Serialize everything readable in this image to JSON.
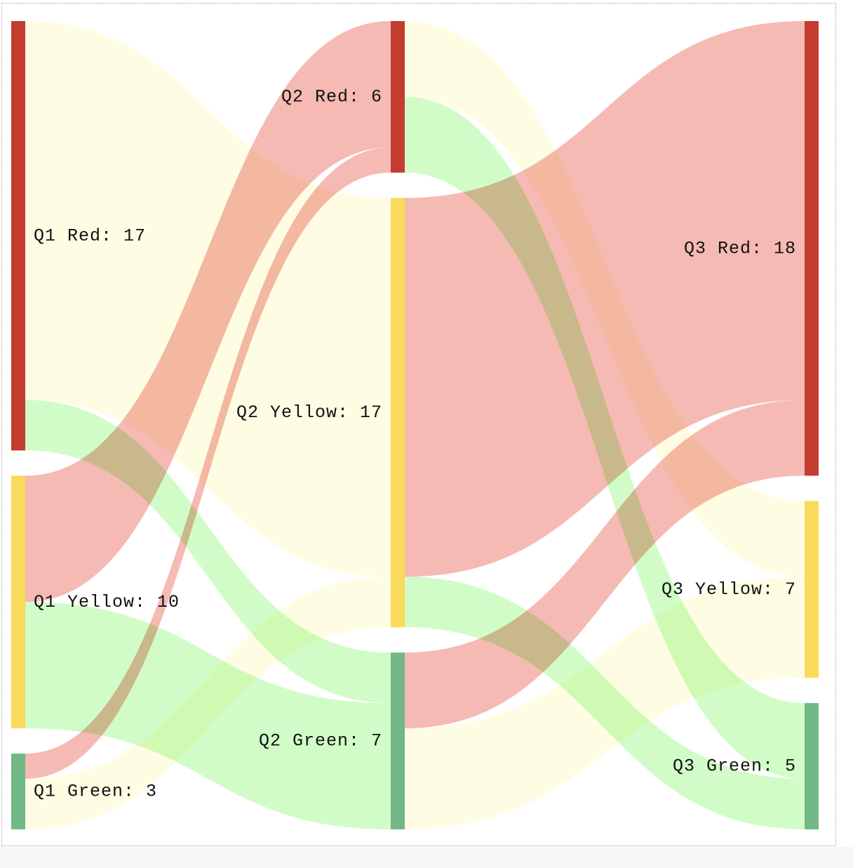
{
  "colors": {
    "red_node": "#c33c2f",
    "yellow_node": "#f9da5b",
    "green_node": "#71b886",
    "red_link": "#f4b4ac",
    "yellow_link": "#fefde2",
    "green_link": "#cdfcc3"
  },
  "nodes": [
    {
      "id": "q1_red",
      "label": "Q1 Red: 17",
      "stage": 1,
      "color": "red",
      "value": 17
    },
    {
      "id": "q1_yellow",
      "label": "Q1 Yellow: 10",
      "stage": 1,
      "color": "yellow",
      "value": 10
    },
    {
      "id": "q1_green",
      "label": "Q1 Green: 3",
      "stage": 1,
      "color": "green",
      "value": 3
    },
    {
      "id": "q2_red",
      "label": "Q2 Red: 6",
      "stage": 2,
      "color": "red",
      "value": 6
    },
    {
      "id": "q2_yellow",
      "label": "Q2 Yellow: 17",
      "stage": 2,
      "color": "yellow",
      "value": 17
    },
    {
      "id": "q2_green",
      "label": "Q2 Green: 7",
      "stage": 2,
      "color": "green",
      "value": 7
    },
    {
      "id": "q3_red",
      "label": "Q3 Red: 18",
      "stage": 3,
      "color": "red",
      "value": 18
    },
    {
      "id": "q3_yellow",
      "label": "Q3 Yellow: 7",
      "stage": 3,
      "color": "yellow",
      "value": 7
    },
    {
      "id": "q3_green",
      "label": "Q3 Green: 5",
      "stage": 3,
      "color": "green",
      "value": 5
    }
  ],
  "links": [
    {
      "source": "q1_red",
      "target": "q2_yellow",
      "value": 15,
      "color": "yellow"
    },
    {
      "source": "q1_red",
      "target": "q2_green",
      "value": 2,
      "color": "green"
    },
    {
      "source": "q1_yellow",
      "target": "q2_red",
      "value": 5,
      "color": "red"
    },
    {
      "source": "q1_yellow",
      "target": "q2_green",
      "value": 5,
      "color": "green"
    },
    {
      "source": "q1_green",
      "target": "q2_red",
      "value": 1,
      "color": "red"
    },
    {
      "source": "q1_green",
      "target": "q2_yellow",
      "value": 2,
      "color": "yellow"
    },
    {
      "source": "q2_red",
      "target": "q3_yellow",
      "value": 3,
      "color": "yellow"
    },
    {
      "source": "q2_red",
      "target": "q3_green",
      "value": 3,
      "color": "green"
    },
    {
      "source": "q2_yellow",
      "target": "q3_red",
      "value": 15,
      "color": "red"
    },
    {
      "source": "q2_yellow",
      "target": "q3_green",
      "value": 2,
      "color": "green"
    },
    {
      "source": "q2_green",
      "target": "q3_red",
      "value": 3,
      "color": "red"
    },
    {
      "source": "q2_green",
      "target": "q3_yellow",
      "value": 4,
      "color": "yellow"
    }
  ]
}
